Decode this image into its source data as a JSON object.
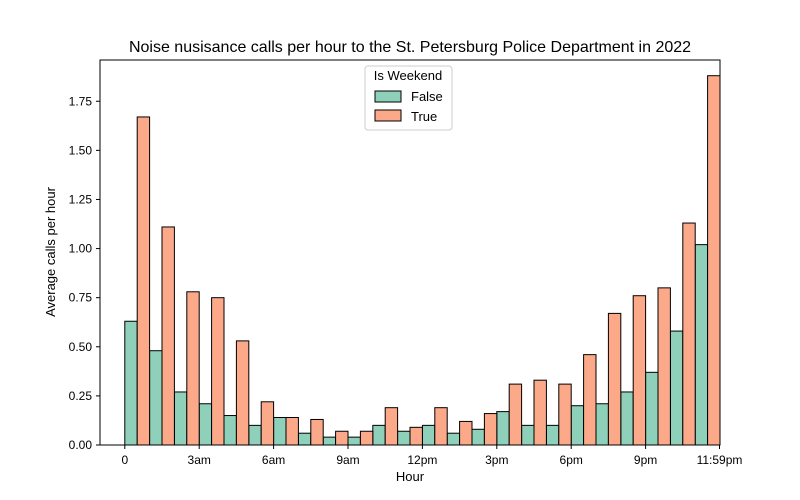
{
  "chart_data": {
    "type": "bar",
    "title": "Noise nusisance calls per hour to the St. Petersburg Police Department in 2022",
    "xlabel": "Hour",
    "ylabel": "Average calls per hour",
    "xlim": [
      -1,
      24
    ],
    "ylim": [
      0,
      1.96
    ],
    "x_ticks": [
      {
        "value": 0,
        "label": "0"
      },
      {
        "value": 3,
        "label": "3am"
      },
      {
        "value": 6,
        "label": "6am"
      },
      {
        "value": 9,
        "label": "9am"
      },
      {
        "value": 12,
        "label": "12pm"
      },
      {
        "value": 15,
        "label": "3pm"
      },
      {
        "value": 18,
        "label": "6pm"
      },
      {
        "value": 21,
        "label": "9pm"
      },
      {
        "value": 23.98,
        "label": "11:59pm"
      }
    ],
    "y_ticks": [
      {
        "value": 0,
        "label": "0.00"
      },
      {
        "value": 0.25,
        "label": "0.25"
      },
      {
        "value": 0.5,
        "label": "0.50"
      },
      {
        "value": 0.75,
        "label": "0.75"
      },
      {
        "value": 1.0,
        "label": "1.00"
      },
      {
        "value": 1.25,
        "label": "1.25"
      },
      {
        "value": 1.5,
        "label": "1.50"
      },
      {
        "value": 1.75,
        "label": "1.75"
      }
    ],
    "hours": [
      0,
      1,
      2,
      3,
      4,
      5,
      6,
      7,
      8,
      9,
      10,
      11,
      12,
      13,
      14,
      15,
      16,
      17,
      18,
      19,
      20,
      21,
      22,
      23
    ],
    "legend": {
      "title": "Is Weekend",
      "position": "top-center"
    },
    "series": [
      {
        "name": "False",
        "color": "#8ed0b9",
        "values": [
          0.63,
          0.48,
          0.27,
          0.21,
          0.15,
          0.1,
          0.14,
          0.06,
          0.04,
          0.04,
          0.1,
          0.07,
          0.1,
          0.06,
          0.08,
          0.17,
          0.1,
          0.1,
          0.2,
          0.21,
          0.27,
          0.37,
          0.58,
          1.02
        ]
      },
      {
        "name": "True",
        "color": "#fca98a",
        "values": [
          1.67,
          1.11,
          0.78,
          0.75,
          0.53,
          0.22,
          0.14,
          0.13,
          0.07,
          0.07,
          0.19,
          0.09,
          0.19,
          0.12,
          0.16,
          0.31,
          0.33,
          0.31,
          0.46,
          0.67,
          0.76,
          0.8,
          1.13,
          1.88
        ]
      }
    ]
  }
}
